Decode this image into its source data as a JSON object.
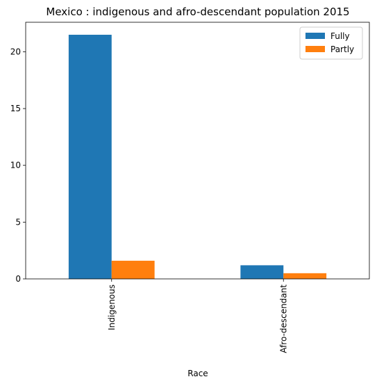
{
  "chart_data": {
    "type": "bar",
    "title": "Mexico : indigenous and afro-descendant population 2015",
    "xlabel": "Race",
    "ylabel": "",
    "categories": [
      "Indigenous",
      "Afro-descendant"
    ],
    "series": [
      {
        "name": "Fully",
        "color": "#1f77b4",
        "values": [
          21.5,
          1.2
        ]
      },
      {
        "name": "Partly",
        "color": "#ff7f0e",
        "values": [
          1.6,
          0.5
        ]
      }
    ],
    "ylim": [
      0,
      22.6
    ],
    "yticks": [
      0,
      5,
      10,
      15,
      20
    ],
    "legend": "top-right",
    "grid": false
  }
}
